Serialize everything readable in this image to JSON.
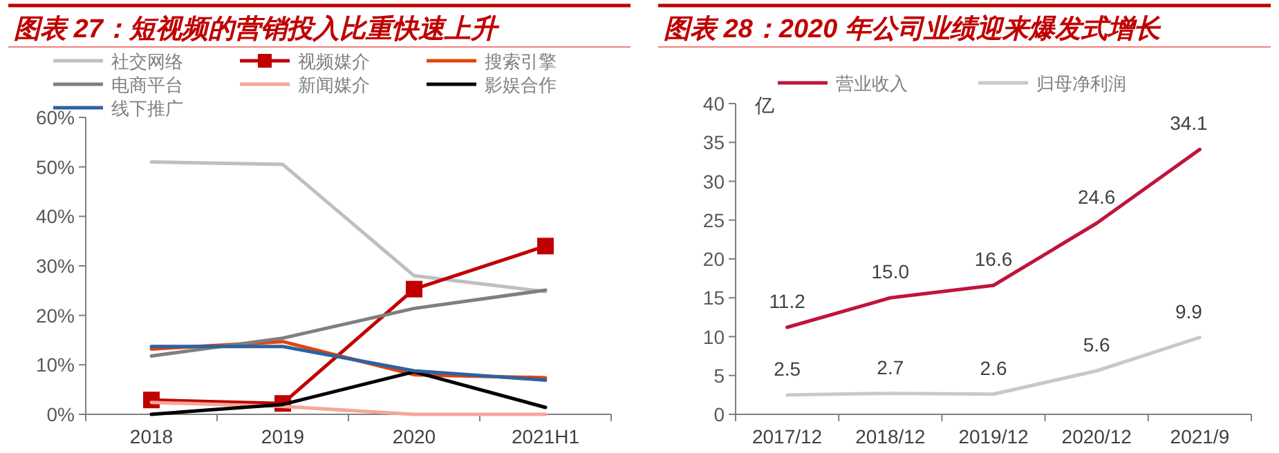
{
  "chart_data": [
    {
      "type": "line",
      "title": "图表 27：短视频的营销投入比重快速上升",
      "categories": [
        "2018",
        "2019",
        "2020",
        "2021H1"
      ],
      "ylim": [
        0,
        60
      ],
      "yticks": [
        {
          "value": 0,
          "label": "0%"
        },
        {
          "value": 10,
          "label": "10%"
        },
        {
          "value": 20,
          "label": "20%"
        },
        {
          "value": 30,
          "label": "30%"
        },
        {
          "value": 40,
          "label": "40%"
        },
        {
          "value": 50,
          "label": "50%"
        },
        {
          "value": 60,
          "label": "60%"
        }
      ],
      "grid": false,
      "legend": "top",
      "line_style": "solid",
      "series": [
        {
          "name": "社交网络",
          "color": "#bfbfbf",
          "values": [
            51,
            50.5,
            28,
            24.8
          ]
        },
        {
          "name": "视频媒介",
          "color": "#c00000",
          "marker": "square",
          "values": [
            2.9,
            2.2,
            25.3,
            34
          ]
        },
        {
          "name": "搜索引擎",
          "color": "#e2440d",
          "values": [
            13.2,
            14.7,
            8,
            7.4
          ]
        },
        {
          "name": "电商平台",
          "color": "#7f7f7f",
          "values": [
            11.8,
            15.4,
            21.4,
            25.1
          ]
        },
        {
          "name": "新闻媒介",
          "color": "#f4a898",
          "values": [
            2.4,
            1.6,
            0,
            0
          ]
        },
        {
          "name": "影娱合作",
          "color": "#000000",
          "values": [
            0,
            2,
            8.6,
            1.4
          ]
        },
        {
          "name": "线下推广",
          "color": "#2e62a0",
          "values": [
            13.7,
            13.7,
            8.8,
            6.9
          ]
        }
      ]
    },
    {
      "type": "line",
      "title": "图表 28：2020 年公司业绩迎来爆发式增长",
      "ylabel": "亿",
      "categories": [
        "2017/12",
        "2018/12",
        "2019/12",
        "2020/12",
        "2021/9"
      ],
      "ylim": [
        0,
        40
      ],
      "yticks": [
        0,
        5,
        10,
        15,
        20,
        25,
        30,
        35,
        40
      ],
      "grid": false,
      "legend": "top",
      "line_style": "solid",
      "series": [
        {
          "name": "营业收入",
          "color": "#c0143c",
          "values": [
            11.2,
            15,
            16.6,
            24.6,
            34.1
          ],
          "value_labels": [
            "11.2",
            "15.0",
            "16.6",
            "24.6",
            "34.1"
          ]
        },
        {
          "name": "归母净利润",
          "color": "#c8c8c8",
          "values": [
            2.5,
            2.7,
            2.6,
            5.6,
            9.9
          ],
          "value_labels": [
            "2.5",
            "2.7",
            "2.6",
            "5.6",
            "9.9"
          ]
        }
      ]
    }
  ]
}
